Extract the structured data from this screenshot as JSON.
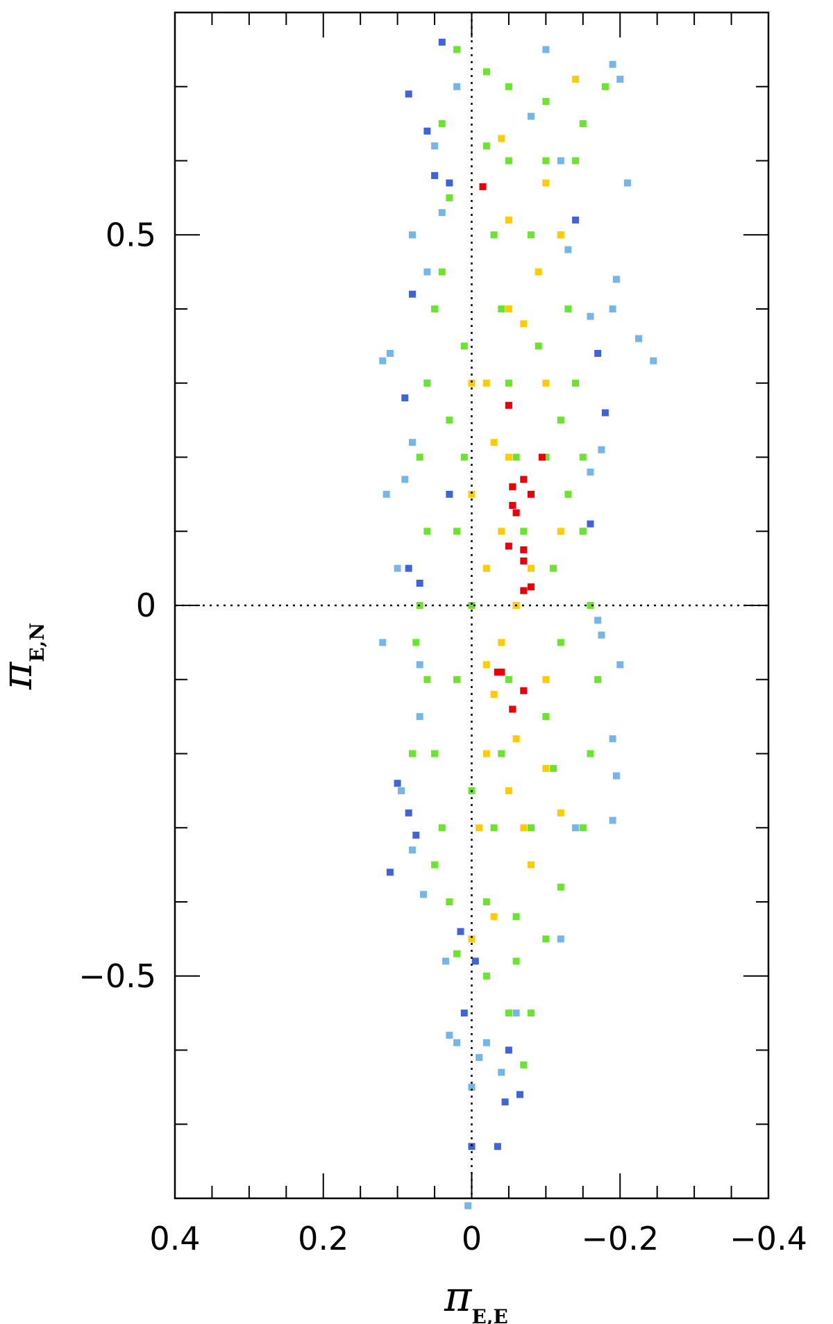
{
  "chart_data": {
    "type": "scatter",
    "title": "",
    "xlabel": {
      "symbol": "π",
      "subscript": "E,E"
    },
    "ylabel": {
      "symbol": "π",
      "subscript": "E,N"
    },
    "xlim": [
      0.4,
      -0.4
    ],
    "ylim": [
      -0.8,
      0.8
    ],
    "x_ticks": [
      0.4,
      0.2,
      0,
      -0.2,
      -0.4
    ],
    "x_tick_labels": [
      "0.4",
      "0.2",
      "0",
      "−0.2",
      "−0.4"
    ],
    "y_ticks": [
      0.5,
      0,
      -0.5
    ],
    "y_tick_labels": [
      "0.5",
      "0",
      "−0.5"
    ],
    "x_minor_step": 0.05,
    "y_minor_step": 0.1,
    "reference_lines": {
      "x": 0,
      "y": 0,
      "style": "dotted"
    },
    "grid": false,
    "legend": "none",
    "marker": "square",
    "series_colors": [
      "#3f63d8",
      "#74b6e8",
      "#6ae42d",
      "#ffcc00",
      "#e8000b"
    ],
    "series": [
      {
        "color": "#3f63d8",
        "points": [
          [
            0.085,
            0.69
          ],
          [
            0.06,
            0.64
          ],
          [
            0.05,
            0.58
          ],
          [
            0.08,
            0.42
          ],
          [
            0.09,
            0.28
          ],
          [
            0.07,
            0.03
          ],
          [
            0.085,
            0.05
          ],
          [
            0.1,
            -0.24
          ],
          [
            0.085,
            -0.28
          ],
          [
            0.11,
            -0.36
          ],
          [
            0.075,
            -0.31
          ],
          [
            0.015,
            -0.44
          ],
          [
            -0.005,
            -0.48
          ],
          [
            -0.035,
            -0.73
          ],
          [
            -0.045,
            -0.67
          ],
          [
            0.0,
            -0.73
          ],
          [
            -0.065,
            -0.66
          ],
          [
            -0.16,
            0.11
          ],
          [
            -0.18,
            0.26
          ],
          [
            0.04,
            0.76
          ],
          [
            -0.14,
            0.52
          ],
          [
            0.03,
            0.15
          ],
          [
            -0.17,
            0.34
          ],
          [
            0.01,
            -0.55
          ],
          [
            -0.05,
            -0.6
          ],
          [
            0.03,
            0.57
          ]
        ]
      },
      {
        "color": "#74b6e8",
        "points": [
          [
            0.005,
            -0.81
          ],
          [
            0.11,
            0.34
          ],
          [
            0.12,
            0.33
          ],
          [
            0.115,
            0.15
          ],
          [
            0.12,
            -0.05
          ],
          [
            0.095,
            -0.25
          ],
          [
            0.08,
            -0.33
          ],
          [
            0.065,
            -0.39
          ],
          [
            0.035,
            -0.48
          ],
          [
            0.03,
            -0.58
          ],
          [
            -0.01,
            -0.61
          ],
          [
            -0.04,
            -0.63
          ],
          [
            -0.21,
            0.57
          ],
          [
            -0.245,
            0.33
          ],
          [
            -0.225,
            0.36
          ],
          [
            -0.195,
            0.44
          ],
          [
            -0.19,
            0.4
          ],
          [
            -0.19,
            0.73
          ],
          [
            -0.2,
            0.71
          ],
          [
            -0.175,
            0.21
          ],
          [
            -0.175,
            -0.04
          ],
          [
            -0.19,
            -0.18
          ],
          [
            -0.195,
            -0.23
          ],
          [
            -0.19,
            -0.29
          ],
          [
            -0.2,
            -0.08
          ],
          [
            0.06,
            0.3
          ],
          [
            0.08,
            0.5
          ],
          [
            0.05,
            0.62
          ],
          [
            -0.1,
            0.75
          ],
          [
            -0.12,
            -0.45
          ],
          [
            -0.06,
            -0.55
          ],
          [
            0.0,
            -0.65
          ],
          [
            -0.02,
            -0.59
          ],
          [
            0.02,
            -0.59
          ],
          [
            0.06,
            0.45
          ],
          [
            -0.15,
            0.1
          ],
          [
            -0.16,
            0.18
          ],
          [
            -0.17,
            -0.02
          ],
          [
            -0.14,
            -0.3
          ],
          [
            0.07,
            -0.15
          ],
          [
            0.09,
            0.17
          ],
          [
            0.08,
            0.22
          ],
          [
            0.1,
            0.05
          ],
          [
            0.07,
            -0.08
          ],
          [
            -0.12,
            0.6
          ],
          [
            -0.08,
            0.66
          ],
          [
            0.04,
            0.53
          ],
          [
            -0.16,
            0.39
          ],
          [
            -0.13,
            0.48
          ],
          [
            0.02,
            0.7
          ]
        ]
      },
      {
        "color": "#6ae42d",
        "points": [
          [
            0.02,
            0.75
          ],
          [
            -0.02,
            0.72
          ],
          [
            -0.05,
            0.7
          ],
          [
            -0.1,
            0.68
          ],
          [
            -0.14,
            0.6
          ],
          [
            -0.18,
            0.7
          ],
          [
            0.03,
            0.55
          ],
          [
            0.04,
            0.45
          ],
          [
            0.05,
            0.4
          ],
          [
            0.06,
            0.3
          ],
          [
            0.07,
            0.2
          ],
          [
            0.06,
            0.1
          ],
          [
            0.07,
            0.0
          ],
          [
            0.06,
            -0.1
          ],
          [
            0.05,
            -0.2
          ],
          [
            0.04,
            -0.3
          ],
          [
            0.03,
            -0.4
          ],
          [
            0.02,
            -0.47
          ],
          [
            -0.02,
            -0.5
          ],
          [
            -0.05,
            -0.55
          ],
          [
            -0.07,
            -0.62
          ],
          [
            -0.08,
            -0.55
          ],
          [
            -0.1,
            -0.45
          ],
          [
            -0.12,
            -0.38
          ],
          [
            -0.15,
            -0.3
          ],
          [
            -0.16,
            -0.2
          ],
          [
            -0.17,
            -0.1
          ],
          [
            -0.16,
            0.0
          ],
          [
            -0.15,
            0.1
          ],
          [
            -0.15,
            0.2
          ],
          [
            -0.14,
            0.3
          ],
          [
            -0.13,
            0.4
          ],
          [
            -0.12,
            0.5
          ],
          [
            -0.1,
            0.6
          ],
          [
            -0.02,
            0.62
          ],
          [
            -0.03,
            0.5
          ],
          [
            -0.04,
            0.4
          ],
          [
            -0.05,
            0.3
          ],
          [
            -0.06,
            0.2
          ],
          [
            -0.07,
            0.1
          ],
          [
            -0.06,
            0.0
          ],
          [
            -0.05,
            -0.1
          ],
          [
            -0.04,
            -0.2
          ],
          [
            -0.03,
            -0.3
          ],
          [
            -0.02,
            -0.4
          ],
          [
            0.01,
            0.2
          ],
          [
            0.0,
            0.0
          ],
          [
            0.0,
            -0.25
          ],
          [
            0.01,
            0.35
          ],
          [
            -0.09,
            0.35
          ],
          [
            -0.1,
            0.2
          ],
          [
            -0.11,
            0.05
          ],
          [
            -0.1,
            -0.15
          ],
          [
            -0.08,
            -0.3
          ],
          [
            -0.06,
            -0.42
          ],
          [
            -0.08,
            0.5
          ],
          [
            -0.05,
            0.6
          ],
          [
            0.02,
            0.1
          ],
          [
            0.02,
            -0.1
          ],
          [
            0.03,
            0.25
          ],
          [
            -0.12,
            0.25
          ],
          [
            -0.13,
            0.15
          ],
          [
            -0.12,
            -0.05
          ],
          [
            -0.11,
            -0.22
          ],
          [
            0.04,
            0.65
          ],
          [
            -0.15,
            0.65
          ],
          [
            -0.06,
            -0.48
          ],
          [
            0.05,
            -0.35
          ],
          [
            0.08,
            -0.2
          ],
          [
            0.075,
            -0.05
          ]
        ]
      },
      {
        "color": "#ffcc00",
        "points": [
          [
            -0.05,
            0.52
          ],
          [
            -0.1,
            0.57
          ],
          [
            -0.12,
            0.5
          ],
          [
            -0.05,
            0.4
          ],
          [
            -0.02,
            0.3
          ],
          [
            -0.05,
            0.2
          ],
          [
            -0.08,
            0.15
          ],
          [
            -0.04,
            0.1
          ],
          [
            -0.02,
            0.05
          ],
          [
            -0.06,
            0.0
          ],
          [
            -0.04,
            -0.05
          ],
          [
            -0.03,
            -0.12
          ],
          [
            -0.06,
            -0.18
          ],
          [
            -0.05,
            -0.25
          ],
          [
            -0.1,
            -0.22
          ],
          [
            -0.12,
            -0.28
          ],
          [
            -0.08,
            -0.35
          ],
          [
            -0.03,
            -0.42
          ],
          [
            -0.01,
            -0.3
          ],
          [
            -0.02,
            -0.2
          ],
          [
            0.0,
            0.3
          ],
          [
            0.0,
            0.15
          ],
          [
            -0.1,
            0.3
          ],
          [
            -0.12,
            0.1
          ],
          [
            -0.1,
            -0.1
          ],
          [
            -0.07,
            0.38
          ],
          [
            -0.09,
            0.45
          ],
          [
            -0.03,
            0.22
          ],
          [
            -0.02,
            -0.08
          ],
          [
            -0.14,
            0.71
          ],
          [
            -0.04,
            0.63
          ],
          [
            -0.08,
            0.05
          ],
          [
            -0.07,
            -0.3
          ],
          [
            0.0,
            -0.45
          ]
        ]
      },
      {
        "color": "#e8000b",
        "points": [
          [
            -0.015,
            0.565
          ],
          [
            -0.05,
            0.27
          ],
          [
            -0.095,
            0.2
          ],
          [
            -0.07,
            0.17
          ],
          [
            -0.055,
            0.16
          ],
          [
            -0.08,
            0.15
          ],
          [
            -0.055,
            0.135
          ],
          [
            -0.06,
            0.125
          ],
          [
            -0.05,
            0.08
          ],
          [
            -0.07,
            0.075
          ],
          [
            -0.07,
            0.06
          ],
          [
            -0.08,
            0.025
          ],
          [
            -0.07,
            0.02
          ],
          [
            -0.04,
            -0.09
          ],
          [
            -0.035,
            -0.09
          ],
          [
            -0.07,
            -0.115
          ],
          [
            -0.055,
            -0.14
          ]
        ]
      }
    ]
  }
}
